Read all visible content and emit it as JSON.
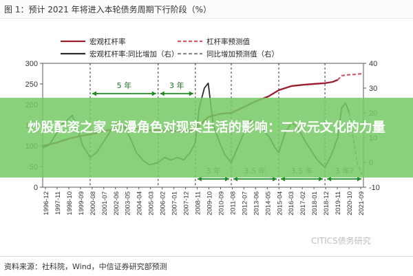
{
  "figure_title": "图 1：预计 2021 年将进入本轮债务周期下行阶段（%）",
  "source": "资料来源：社科院，Wind，中信证券研究部预测",
  "watermark": "CITICS债务研究",
  "banner_text": "炒股配资之家 动漫角色对现实生活的影响：二次元文化的力量",
  "colors": {
    "leverage": "#9b1f2f",
    "leverage_forecast": "#d2556a",
    "yoy": "#2c2c2c",
    "yoy_forecast": "#8a8a8a",
    "annotation": "#1e8a24",
    "grid_dash": "#333333"
  },
  "chart_data": {
    "type": "line",
    "legend": [
      {
        "label": "宏观杠杆率",
        "style": "solid",
        "color": "#9b1f2f"
      },
      {
        "label": "杠杆率预测值",
        "style": "dashed",
        "color": "#d2556a"
      },
      {
        "label": "宏观杠杆率:同比增加（右）",
        "style": "solid",
        "color": "#2c2c2c"
      },
      {
        "label": "同比增加预测值（右）",
        "style": "dashed",
        "color": "#8a8a8a"
      }
    ],
    "left_axis": {
      "min": 0,
      "max": 300,
      "ticks": [
        "0",
        "50",
        "100",
        "150",
        "200",
        "250",
        "300"
      ]
    },
    "right_axis": {
      "min": -10,
      "max": 40,
      "ticks": [
        "-10",
        "0",
        "10",
        "20",
        "30",
        "40"
      ]
    },
    "x_ticks": [
      "1996-12",
      "1997-11",
      "1998-10",
      "1999-09",
      "2000-08",
      "2001-07",
      "2002-06",
      "2003-05",
      "2004-04",
      "2005-03",
      "2006-02",
      "2007-01",
      "2007-12",
      "2008-11",
      "2009-10",
      "2010-09",
      "2011-08",
      "2012-07",
      "2013-06",
      "2014-05",
      "2015-04",
      "2016-03",
      "2017-02",
      "2018-01",
      "2018-12",
      "2019-11",
      "2020-10",
      "2021-09"
    ],
    "x_range": [
      1996.9,
      2021.9
    ],
    "cycle_lines": [
      2000.6,
      2005.9,
      2008.8,
      2011.6,
      2015.3,
      2018.9
    ],
    "annotations_top": [
      {
        "text": "5 年",
        "from": 2000.6,
        "to": 2005.9
      },
      {
        "text": "3 年",
        "from": 2005.9,
        "to": 2008.8
      }
    ],
    "annotations_bottom": [
      {
        "text": "3 年",
        "from": 2008.8,
        "to": 2011.6
      },
      {
        "text": "3.5 年",
        "from": 2011.6,
        "to": 2015.3
      },
      {
        "text": "3.5 年",
        "from": 2015.3,
        "to": 2018.9
      },
      {
        "text": "3 年?",
        "from": 2018.9,
        "to": 2021.9
      }
    ],
    "series": [
      {
        "name": "宏观杠杆率",
        "axis": "left",
        "points": [
          [
            1996.9,
            100
          ],
          [
            1998,
            108
          ],
          [
            1999,
            118
          ],
          [
            2000,
            125
          ],
          [
            2001,
            130
          ],
          [
            2002,
            138
          ],
          [
            2003,
            145
          ],
          [
            2004,
            143
          ],
          [
            2005,
            138
          ],
          [
            2006,
            138
          ],
          [
            2007,
            136
          ],
          [
            2008,
            135
          ],
          [
            2008.8,
            140
          ],
          [
            2009.8,
            170
          ],
          [
            2010.8,
            178
          ],
          [
            2011.6,
            180
          ],
          [
            2012.5,
            193
          ],
          [
            2013.5,
            208
          ],
          [
            2014.5,
            220
          ],
          [
            2015.3,
            235
          ],
          [
            2016.3,
            245
          ],
          [
            2017.2,
            248
          ],
          [
            2018,
            250
          ],
          [
            2018.9,
            252
          ],
          [
            2019.5,
            255
          ],
          [
            2019.9,
            260
          ]
        ]
      },
      {
        "name": "杠杆率预测值",
        "axis": "left",
        "points": [
          [
            2019.9,
            260
          ],
          [
            2020.2,
            270
          ],
          [
            2020.6,
            272
          ],
          [
            2021.2,
            273
          ],
          [
            2021.8,
            275
          ]
        ]
      },
      {
        "name": "宏观杠杆率:同比增加（右）",
        "axis": "right",
        "points": [
          [
            1996.9,
            6
          ],
          [
            1997.4,
            7
          ],
          [
            1997.9,
            11
          ],
          [
            1998.3,
            15
          ],
          [
            1998.8,
            17
          ],
          [
            1999.2,
            19
          ],
          [
            1999.6,
            14
          ],
          [
            2000.0,
            7
          ],
          [
            2000.6,
            2
          ],
          [
            2001.1,
            4
          ],
          [
            2001.6,
            8
          ],
          [
            2002.1,
            12
          ],
          [
            2002.7,
            16
          ],
          [
            2003.2,
            15
          ],
          [
            2003.7,
            10
          ],
          [
            2004.2,
            4
          ],
          [
            2004.7,
            1
          ],
          [
            2005.2,
            -1
          ],
          [
            2005.9,
            0
          ],
          [
            2006.4,
            2
          ],
          [
            2006.9,
            1
          ],
          [
            2007.4,
            2
          ],
          [
            2007.9,
            1
          ],
          [
            2008.4,
            4
          ],
          [
            2008.8,
            8
          ],
          [
            2009.1,
            22
          ],
          [
            2009.5,
            30
          ],
          [
            2009.8,
            32
          ],
          [
            2010.2,
            15
          ],
          [
            2010.7,
            8
          ],
          [
            2011.1,
            3
          ],
          [
            2011.6,
            0
          ],
          [
            2012.1,
            6
          ],
          [
            2012.6,
            12
          ],
          [
            2013.1,
            17
          ],
          [
            2013.6,
            16
          ],
          [
            2014.1,
            13
          ],
          [
            2014.6,
            10
          ],
          [
            2015.0,
            6
          ],
          [
            2015.3,
            4
          ],
          [
            2015.8,
            12
          ],
          [
            2016.3,
            16
          ],
          [
            2016.8,
            14
          ],
          [
            2017.3,
            9
          ],
          [
            2017.8,
            5
          ],
          [
            2018.3,
            1
          ],
          [
            2018.9,
            -2
          ],
          [
            2019.4,
            3
          ],
          [
            2019.9,
            10
          ],
          [
            2020.2,
            22
          ],
          [
            2020.5,
            24
          ],
          [
            2020.8,
            20
          ]
        ]
      },
      {
        "name": "同比增加预测值（右）",
        "axis": "right",
        "points": [
          [
            2020.8,
            20
          ],
          [
            2021.1,
            10
          ],
          [
            2021.4,
            0
          ],
          [
            2021.8,
            -5
          ]
        ]
      }
    ]
  }
}
